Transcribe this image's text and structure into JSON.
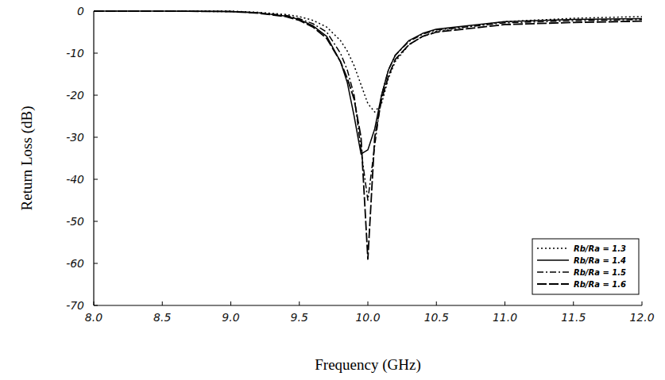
{
  "chart_data": {
    "type": "line",
    "x_label": "Frequency (GHz)",
    "y_label": "Return Loss (dB)",
    "x": [
      8.0,
      8.5,
      9.0,
      9.2,
      9.4,
      9.5,
      9.6,
      9.7,
      9.8,
      9.85,
      9.9,
      9.95,
      10.0,
      10.05,
      10.1,
      10.15,
      10.2,
      10.3,
      10.4,
      10.5,
      11.0,
      11.5,
      12.0
    ],
    "series": [
      {
        "name": "Rb/Ra = 1.3",
        "color": "#000000",
        "line_style": "dotted",
        "values": [
          0,
          0,
          0,
          -0.3,
          -0.8,
          -1.3,
          -2.2,
          -3.8,
          -7,
          -9.5,
          -13,
          -17.5,
          -22,
          -24,
          -22,
          -16,
          -12,
          -8,
          -6,
          -4.8,
          -2.5,
          -1.7,
          -1.3
        ]
      },
      {
        "name": "Rb/Ra = 1.4",
        "color": "#000000",
        "line_style": "solid",
        "values": [
          0,
          0,
          -0.1,
          -0.4,
          -1.2,
          -2,
          -3.5,
          -6,
          -12,
          -17,
          -25,
          -34,
          -33,
          -28,
          -20,
          -14,
          -10.5,
          -7,
          -5.3,
          -4.3,
          -2.5,
          -2,
          -1.8
        ]
      },
      {
        "name": "Rb/Ra = 1.5",
        "color": "#000000",
        "line_style": "dashdot",
        "values": [
          0,
          0,
          -0.1,
          -0.4,
          -1,
          -1.8,
          -3,
          -5,
          -10,
          -14,
          -20,
          -33,
          -45,
          -32,
          -20,
          -14,
          -10.5,
          -7.2,
          -5.5,
          -4.5,
          -2.8,
          -2.3,
          -2.0
        ]
      },
      {
        "name": "Rb/Ra = 1.6",
        "color": "#000000",
        "line_style": "longdash",
        "values": [
          0,
          0,
          -0.1,
          -0.5,
          -1.3,
          -2.2,
          -3.8,
          -6.5,
          -12,
          -16,
          -21,
          -30,
          -59,
          -30,
          -21,
          -15.5,
          -11.5,
          -8,
          -6,
          -5,
          -3.2,
          -2.7,
          -2.4
        ]
      }
    ],
    "xlim": [
      8.0,
      12.0
    ],
    "ylim": [
      -70,
      0
    ],
    "xticks": [
      {
        "value": 8.0,
        "label": "8.0"
      },
      {
        "value": 8.5,
        "label": "8.5"
      },
      {
        "value": 9.0,
        "label": "9.0"
      },
      {
        "value": 9.5,
        "label": "9.5"
      },
      {
        "value": 10.0,
        "label": "10.0"
      },
      {
        "value": 10.5,
        "label": "10.5"
      },
      {
        "value": 11.0,
        "label": "11.0"
      },
      {
        "value": 11.5,
        "label": "11.5"
      },
      {
        "value": 12.0,
        "label": "12.0"
      }
    ],
    "yticks": [
      0,
      -10,
      -20,
      -30,
      -40,
      -50,
      -60,
      -70
    ],
    "grid": false,
    "legend": "bottom-right"
  }
}
